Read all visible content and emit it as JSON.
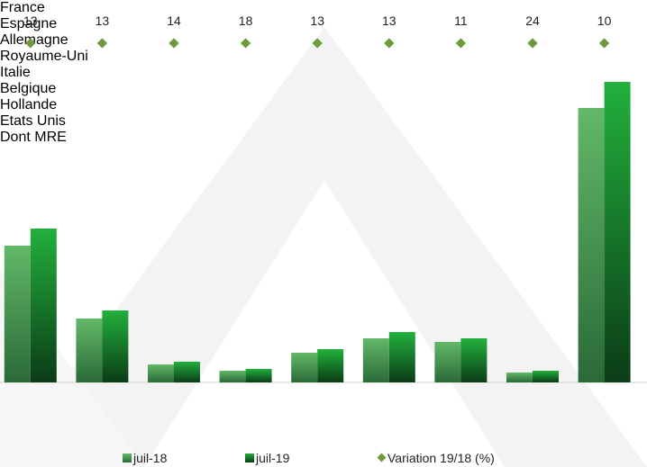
{
  "chart_data": {
    "type": "bar",
    "categories": [
      "France",
      "Espagne",
      "Allemagne",
      "Royaume-Uni",
      "Italie",
      "Belgique",
      "Hollande",
      "Etats Unis",
      "Dont MRE"
    ],
    "series": [
      {
        "name": "juil-18",
        "color": "#4fa85a",
        "values": [
          152,
          71,
          20,
          13,
          33,
          49,
          45,
          11,
          305
        ]
      },
      {
        "name": "juil-19",
        "color": "#1fa038",
        "values": [
          171,
          80,
          23,
          15,
          37,
          56,
          49,
          13,
          334
        ]
      },
      {
        "name": "Variation 19/18 (%)",
        "color": "#6f9a3c",
        "type": "scatter",
        "values": [
          13,
          13,
          14,
          18,
          13,
          13,
          11,
          24,
          10
        ]
      }
    ],
    "ylim": [
      0,
      380
    ]
  }
}
